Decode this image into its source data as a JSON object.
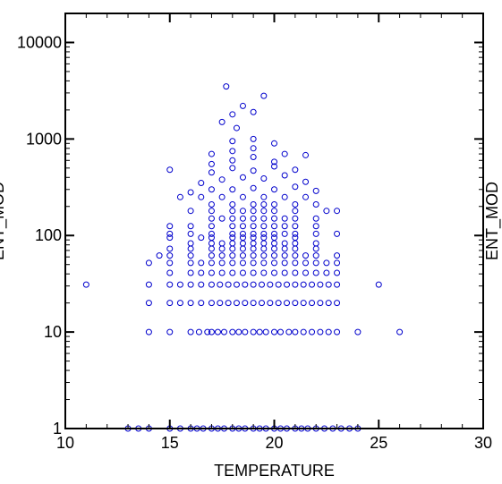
{
  "chart_data": {
    "type": "scatter",
    "xlabel": "TEMPERATURE",
    "ylabel_left": "ENT_MOD",
    "ylabel_right": "ENT_MOD",
    "x_range": [
      10,
      30
    ],
    "y_range": [
      1,
      20000
    ],
    "y_scale": "log",
    "x_ticks": [
      10,
      15,
      20,
      25,
      30
    ],
    "x_tick_labels": [
      "10",
      "15",
      "20",
      "25",
      "30"
    ],
    "y_ticks": [
      1,
      10,
      100,
      1000,
      10000
    ],
    "y_tick_labels": [
      "1",
      "10",
      "100",
      "1000",
      "10000"
    ],
    "grid": false,
    "marker_color": "#0000cc",
    "marker": "open-circle",
    "series": [
      {
        "points": [
          [
            11,
            31
          ],
          [
            14,
            10
          ],
          [
            15,
            10
          ],
          [
            16,
            10
          ],
          [
            16.4,
            10
          ],
          [
            16.8,
            10
          ],
          [
            17,
            10
          ],
          [
            17.3,
            10
          ],
          [
            17.6,
            10
          ],
          [
            18,
            10
          ],
          [
            18.3,
            10
          ],
          [
            18.6,
            10
          ],
          [
            19,
            10
          ],
          [
            19.3,
            10
          ],
          [
            19.6,
            10
          ],
          [
            20,
            10
          ],
          [
            20.3,
            10
          ],
          [
            20.7,
            10
          ],
          [
            21,
            10
          ],
          [
            21.4,
            10
          ],
          [
            21.8,
            10
          ],
          [
            22.2,
            10
          ],
          [
            22.6,
            10
          ],
          [
            23,
            10
          ],
          [
            24,
            10
          ],
          [
            26,
            10
          ],
          [
            14,
            20
          ],
          [
            15,
            20
          ],
          [
            15.5,
            20
          ],
          [
            16,
            20
          ],
          [
            16.5,
            20
          ],
          [
            17,
            20
          ],
          [
            17.4,
            20
          ],
          [
            17.8,
            20
          ],
          [
            18.2,
            20
          ],
          [
            18.6,
            20
          ],
          [
            19,
            20
          ],
          [
            19.4,
            20
          ],
          [
            19.8,
            20
          ],
          [
            20.2,
            20
          ],
          [
            20.6,
            20
          ],
          [
            21,
            20
          ],
          [
            21.4,
            20
          ],
          [
            21.8,
            20
          ],
          [
            22.2,
            20
          ],
          [
            22.6,
            20
          ],
          [
            23,
            20
          ],
          [
            14,
            31
          ],
          [
            15,
            31
          ],
          [
            15.5,
            31
          ],
          [
            16,
            31
          ],
          [
            16.5,
            31
          ],
          [
            17,
            31
          ],
          [
            17.4,
            31
          ],
          [
            17.8,
            31
          ],
          [
            18.2,
            31
          ],
          [
            18.6,
            31
          ],
          [
            19,
            31
          ],
          [
            19.4,
            31
          ],
          [
            19.8,
            31
          ],
          [
            20.2,
            31
          ],
          [
            20.6,
            31
          ],
          [
            21,
            31
          ],
          [
            21.4,
            31
          ],
          [
            21.8,
            31
          ],
          [
            22.2,
            31
          ],
          [
            22.6,
            31
          ],
          [
            23,
            31
          ],
          [
            25,
            31
          ],
          [
            15,
            41
          ],
          [
            16,
            41
          ],
          [
            16.5,
            41
          ],
          [
            17,
            41
          ],
          [
            17.5,
            41
          ],
          [
            18,
            41
          ],
          [
            18.5,
            41
          ],
          [
            19,
            41
          ],
          [
            19.5,
            41
          ],
          [
            20,
            41
          ],
          [
            20.5,
            41
          ],
          [
            21,
            41
          ],
          [
            21.5,
            41
          ],
          [
            22,
            41
          ],
          [
            22.5,
            41
          ],
          [
            23,
            41
          ],
          [
            14,
            52
          ],
          [
            15,
            52
          ],
          [
            16,
            52
          ],
          [
            16.5,
            52
          ],
          [
            17,
            52
          ],
          [
            17.5,
            52
          ],
          [
            18,
            52
          ],
          [
            18.5,
            52
          ],
          [
            19,
            52
          ],
          [
            19.5,
            52
          ],
          [
            20,
            52
          ],
          [
            20.5,
            52
          ],
          [
            21,
            52
          ],
          [
            21.5,
            52
          ],
          [
            22,
            52
          ],
          [
            22.5,
            52
          ],
          [
            23,
            52
          ],
          [
            14.5,
            62
          ],
          [
            15,
            62
          ],
          [
            16,
            62
          ],
          [
            17,
            62
          ],
          [
            17.5,
            62
          ],
          [
            18,
            62
          ],
          [
            18.5,
            62
          ],
          [
            19,
            62
          ],
          [
            19.5,
            62
          ],
          [
            20,
            62
          ],
          [
            20.5,
            62
          ],
          [
            21,
            62
          ],
          [
            21.5,
            62
          ],
          [
            22,
            62
          ],
          [
            23,
            62
          ],
          [
            15,
            73
          ],
          [
            16,
            73
          ],
          [
            17,
            73
          ],
          [
            17.5,
            73
          ],
          [
            18,
            73
          ],
          [
            18.5,
            73
          ],
          [
            19,
            73
          ],
          [
            19.5,
            73
          ],
          [
            20,
            73
          ],
          [
            20.5,
            73
          ],
          [
            21,
            73
          ],
          [
            22,
            73
          ],
          [
            16,
            83
          ],
          [
            17,
            83
          ],
          [
            17.5,
            83
          ],
          [
            18,
            83
          ],
          [
            18.5,
            83
          ],
          [
            19,
            83
          ],
          [
            19.5,
            83
          ],
          [
            20,
            83
          ],
          [
            20.5,
            83
          ],
          [
            21,
            83
          ],
          [
            22,
            83
          ],
          [
            15,
            95
          ],
          [
            16.5,
            95
          ],
          [
            17,
            95
          ],
          [
            18,
            95
          ],
          [
            18.5,
            95
          ],
          [
            19,
            95
          ],
          [
            19.5,
            95
          ],
          [
            20,
            95
          ],
          [
            21,
            95
          ],
          [
            15,
            104
          ],
          [
            16,
            104
          ],
          [
            17,
            104
          ],
          [
            18,
            104
          ],
          [
            18.5,
            104
          ],
          [
            19,
            104
          ],
          [
            19.5,
            104
          ],
          [
            20,
            104
          ],
          [
            20.5,
            104
          ],
          [
            21,
            104
          ],
          [
            22,
            104
          ],
          [
            23,
            104
          ],
          [
            15,
            125
          ],
          [
            16,
            125
          ],
          [
            17,
            125
          ],
          [
            18,
            125
          ],
          [
            18.5,
            125
          ],
          [
            19,
            125
          ],
          [
            19.5,
            125
          ],
          [
            20,
            125
          ],
          [
            20.5,
            125
          ],
          [
            21,
            125
          ],
          [
            22,
            125
          ],
          [
            17,
            150
          ],
          [
            17.5,
            150
          ],
          [
            18,
            150
          ],
          [
            18.5,
            150
          ],
          [
            19,
            150
          ],
          [
            19.5,
            150
          ],
          [
            20,
            150
          ],
          [
            20.5,
            150
          ],
          [
            21,
            150
          ],
          [
            22,
            150
          ],
          [
            16,
            180
          ],
          [
            17,
            180
          ],
          [
            18,
            180
          ],
          [
            18.5,
            180
          ],
          [
            19,
            180
          ],
          [
            19.5,
            180
          ],
          [
            20,
            180
          ],
          [
            21,
            180
          ],
          [
            22.5,
            180
          ],
          [
            23,
            180
          ],
          [
            17,
            210
          ],
          [
            18,
            210
          ],
          [
            19,
            210
          ],
          [
            19.5,
            210
          ],
          [
            20,
            210
          ],
          [
            21,
            210
          ],
          [
            22,
            210
          ],
          [
            15.5,
            250
          ],
          [
            16.5,
            250
          ],
          [
            17.5,
            250
          ],
          [
            18.5,
            250
          ],
          [
            19.5,
            250
          ],
          [
            20.5,
            250
          ],
          [
            21.5,
            250
          ],
          [
            16,
            280
          ],
          [
            17,
            300
          ],
          [
            18,
            300
          ],
          [
            19,
            310
          ],
          [
            20,
            300
          ],
          [
            21,
            320
          ],
          [
            22,
            290
          ],
          [
            16.5,
            350
          ],
          [
            17.5,
            380
          ],
          [
            18.5,
            400
          ],
          [
            19.5,
            390
          ],
          [
            20.5,
            420
          ],
          [
            21.5,
            360
          ],
          [
            17,
            450
          ],
          [
            18,
            500
          ],
          [
            19,
            470
          ],
          [
            20,
            520
          ],
          [
            21,
            480
          ],
          [
            15,
            480
          ],
          [
            17,
            550
          ],
          [
            18,
            600
          ],
          [
            19,
            650
          ],
          [
            20,
            580
          ],
          [
            17,
            700
          ],
          [
            18,
            750
          ],
          [
            19,
            800
          ],
          [
            20.5,
            700
          ],
          [
            21.5,
            680
          ],
          [
            18,
            950
          ],
          [
            19,
            1000
          ],
          [
            20,
            900
          ],
          [
            18.2,
            1300
          ],
          [
            17.5,
            1500
          ],
          [
            18,
            1800
          ],
          [
            18.5,
            2200
          ],
          [
            19,
            1900
          ],
          [
            19.5,
            2800
          ],
          [
            17.7,
            3500
          ],
          [
            13,
            1
          ],
          [
            13.5,
            1
          ],
          [
            14,
            1
          ],
          [
            15,
            1
          ],
          [
            15.5,
            1
          ],
          [
            16,
            1
          ],
          [
            16.3,
            1
          ],
          [
            16.6,
            1
          ],
          [
            17,
            1
          ],
          [
            17.3,
            1
          ],
          [
            17.6,
            1
          ],
          [
            18,
            1
          ],
          [
            18.3,
            1
          ],
          [
            18.6,
            1
          ],
          [
            19,
            1
          ],
          [
            19.3,
            1
          ],
          [
            19.6,
            1
          ],
          [
            20,
            1
          ],
          [
            20.3,
            1
          ],
          [
            20.6,
            1
          ],
          [
            21,
            1
          ],
          [
            21.3,
            1
          ],
          [
            21.6,
            1
          ],
          [
            22,
            1
          ],
          [
            22.4,
            1
          ],
          [
            22.8,
            1
          ],
          [
            23.2,
            1
          ],
          [
            23.6,
            1
          ],
          [
            24,
            1
          ]
        ]
      }
    ]
  }
}
